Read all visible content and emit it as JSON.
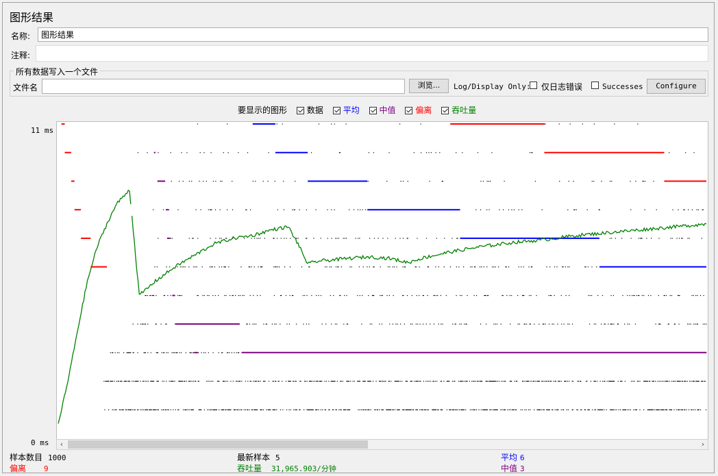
{
  "panel": {
    "title": "图形结果"
  },
  "name_field": {
    "label": "名称:",
    "value": "图形结果"
  },
  "comment_field": {
    "label": "注释:",
    "value": ""
  },
  "file_group": {
    "title": "所有数据写入一个文件",
    "filename_label": "文件名",
    "filename_value": "",
    "browse_label": "浏览...",
    "log_display_label": "Log/Display Only:",
    "errors_only_label": "仅日志错误",
    "successes_label": "Successes",
    "configure_label": "Configure"
  },
  "graph_options": {
    "label": "要显示的图形",
    "items": [
      {
        "label": "数据",
        "color": "#000000",
        "checked": true
      },
      {
        "label": "平均",
        "color": "#0000ff",
        "checked": true
      },
      {
        "label": "中值",
        "color": "#800080",
        "checked": true
      },
      {
        "label": "偏离",
        "color": "#ff0000",
        "checked": true
      },
      {
        "label": "吞吐量",
        "color": "#008000",
        "checked": true
      }
    ]
  },
  "y_axis": {
    "max_label": "11 ms",
    "min_label": "0 ms"
  },
  "chart_data": {
    "type": "scatter",
    "x_range": [
      0,
      1000
    ],
    "y_range": [
      0,
      11
    ],
    "y_unit": "ms",
    "series": [
      {
        "name": "数据",
        "color": "#000000",
        "rows": [
          {
            "y": 1,
            "start": 70,
            "density": 0.55
          },
          {
            "y": 2,
            "start": 70,
            "density": 0.5
          },
          {
            "y": 3,
            "start": 80,
            "density": 0.35
          },
          {
            "y": 4,
            "start": 110,
            "density": 0.22
          },
          {
            "y": 5,
            "start": 130,
            "density": 0.2
          },
          {
            "y": 6,
            "start": 140,
            "density": 0.18
          },
          {
            "y": 7,
            "start": 150,
            "density": 0.15
          },
          {
            "y": 8,
            "start": 140,
            "density": 0.12
          },
          {
            "y": 9,
            "start": 150,
            "density": 0.08
          },
          {
            "y": 10,
            "start": 120,
            "density": 0.06
          },
          {
            "y": 11,
            "start": 200,
            "density": 0.04
          }
        ]
      },
      {
        "name": "平均",
        "color": "#0000ff",
        "segments": [
          {
            "y": 11,
            "x1": 300,
            "x2": 335
          },
          {
            "y": 10,
            "x1": 335,
            "x2": 385
          },
          {
            "y": 9,
            "x1": 385,
            "x2": 477
          },
          {
            "y": 8,
            "x1": 477,
            "x2": 620
          },
          {
            "y": 7,
            "x1": 620,
            "x2": 835
          },
          {
            "y": 6,
            "x1": 835,
            "x2": 1000
          }
        ]
      },
      {
        "name": "中值",
        "color": "#800080",
        "segments": [
          {
            "y": 10,
            "x1": 148,
            "x2": 150
          },
          {
            "y": 9,
            "x1": 153,
            "x2": 165
          },
          {
            "y": 8,
            "x1": 166,
            "x2": 170
          },
          {
            "y": 7,
            "x1": 168,
            "x2": 172
          },
          {
            "y": 5,
            "x1": 176,
            "x2": 180
          },
          {
            "y": 4,
            "x1": 180,
            "x2": 280
          },
          {
            "y": 3,
            "x1": 210,
            "x2": 215
          },
          {
            "y": 3,
            "x1": 283,
            "x2": 1000
          }
        ]
      },
      {
        "name": "偏离",
        "color": "#ff0000",
        "segments": [
          {
            "y": 11,
            "x1": 5,
            "x2": 10
          },
          {
            "y": 10,
            "x1": 10,
            "x2": 20
          },
          {
            "y": 9,
            "x1": 20,
            "x2": 25
          },
          {
            "y": 8,
            "x1": 25,
            "x2": 35
          },
          {
            "y": 7,
            "x1": 35,
            "x2": 50
          },
          {
            "y": 6,
            "x1": 50,
            "x2": 75
          },
          {
            "y": 11,
            "x1": 605,
            "x2": 750
          },
          {
            "y": 10,
            "x1": 750,
            "x2": 935
          },
          {
            "y": 9,
            "x1": 935,
            "x2": 1000
          }
        ]
      },
      {
        "name": "吞吐量",
        "color": "#008000",
        "points": [
          [
            0,
            0.5
          ],
          [
            15,
            2.0
          ],
          [
            30,
            3.8
          ],
          [
            45,
            5.5
          ],
          [
            60,
            6.7
          ],
          [
            75,
            7.5
          ],
          [
            90,
            8.2
          ],
          [
            110,
            8.7
          ],
          [
            125,
            5.0
          ],
          [
            150,
            5.5
          ],
          [
            180,
            6.0
          ],
          [
            210,
            6.4
          ],
          [
            240,
            6.8
          ],
          [
            270,
            7.0
          ],
          [
            300,
            7.1
          ],
          [
            330,
            7.3
          ],
          [
            355,
            7.4
          ],
          [
            370,
            6.8
          ],
          [
            385,
            6.1
          ],
          [
            400,
            6.2
          ],
          [
            450,
            6.3
          ],
          [
            480,
            6.35
          ],
          [
            510,
            6.3
          ],
          [
            540,
            6.15
          ],
          [
            560,
            6.3
          ],
          [
            600,
            6.5
          ],
          [
            650,
            6.7
          ],
          [
            700,
            6.85
          ],
          [
            750,
            6.95
          ],
          [
            800,
            7.1
          ],
          [
            850,
            7.2
          ],
          [
            900,
            7.3
          ],
          [
            950,
            7.4
          ],
          [
            1000,
            7.5
          ]
        ]
      }
    ]
  },
  "stats": {
    "sample_count_label": "样本数目",
    "sample_count_value": "1000",
    "latest_sample_label": "最新样本",
    "latest_sample_value": "5",
    "average_label": "平均",
    "average_value": "6",
    "deviation_label": "偏离",
    "deviation_value": "9",
    "throughput_label": "吞吐量",
    "throughput_value": "31,965.903/分钟",
    "median_label": "中值",
    "median_value": "3"
  }
}
